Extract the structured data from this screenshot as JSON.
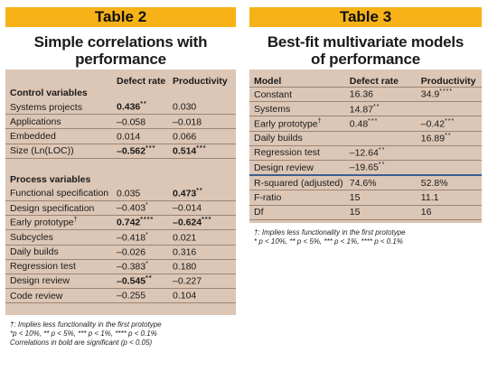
{
  "table2": {
    "tag": "Table 2",
    "title_line1": "Simple correlations with",
    "title_line2": "performance",
    "col1": "Defect rate",
    "col2": "Productivity",
    "section1": "Control variables",
    "section2": "Process variables",
    "control_rows": [
      {
        "label": "Systems projects",
        "v1": "0.436",
        "s1": "**",
        "b1": true,
        "v2": "0.030",
        "s2": "",
        "b2": false
      },
      {
        "label": "Applications",
        "v1": "–0.058",
        "s1": "",
        "b1": false,
        "v2": "–0.018",
        "s2": "",
        "b2": false
      },
      {
        "label": "Embedded",
        "v1": "0.014",
        "s1": "",
        "b1": false,
        "v2": "0.066",
        "s2": "",
        "b2": false
      },
      {
        "label": "Size (Ln(LOC))",
        "v1": "–0.562",
        "s1": "***",
        "b1": true,
        "v2": "0.514",
        "s2": "***",
        "b2": true
      }
    ],
    "process_rows": [
      {
        "label": "Functional specification",
        "v1": "0.035",
        "s1": "",
        "b1": false,
        "v2": "0.473",
        "s2": "**",
        "b2": true
      },
      {
        "label": "Design specification",
        "v1": "–0.403",
        "s1": "*",
        "b1": false,
        "v2": "–0.014",
        "s2": "",
        "b2": false
      },
      {
        "label": "Early prototype",
        "sup": "†",
        "v1": "0.742",
        "s1": "****",
        "b1": true,
        "v2": "–0.624",
        "s2": "***",
        "b2": true
      },
      {
        "label": "Subcycles",
        "v1": "–0.418",
        "s1": "*",
        "b1": false,
        "v2": "0.021",
        "s2": "",
        "b2": false
      },
      {
        "label": "Daily builds",
        "v1": "–0.026",
        "s1": "",
        "b1": false,
        "v2": "0.316",
        "s2": "",
        "b2": false
      },
      {
        "label": "Regression test",
        "v1": "–0.383",
        "s1": "*",
        "b1": false,
        "v2": "0.180",
        "s2": "",
        "b2": false
      },
      {
        "label": "Design review",
        "v1": "–0.545",
        "s1": "**",
        "b1": true,
        "v2": "–0.227",
        "s2": "",
        "b2": false
      },
      {
        "label": "Code review",
        "v1": "–0.255",
        "s1": "",
        "b1": false,
        "v2": "0.104",
        "s2": "",
        "b2": false
      }
    ],
    "footnote1": "†: Implies less functionality in the first prototype",
    "footnote2": "*p < 10%, ** p < 5%, *** p < 1%, **** p < 0.1%",
    "footnote3": "Correlations in bold are significant (p < 0.05)"
  },
  "table3": {
    "tag": "Table 3",
    "title_line1": "Best-fit multivariate models",
    "title_line2": "of performance",
    "col0": "Model",
    "col1": "Defect rate",
    "col2": "Productivity",
    "rows": [
      {
        "label": "Constant",
        "v1": "16.36",
        "s1": "",
        "v2": "34.9",
        "s2": "****"
      },
      {
        "label": "Systems",
        "v1": "14.87",
        "s1": "**",
        "v2": "",
        "s2": ""
      },
      {
        "label": "Early prototype",
        "sup": "†",
        "v1": "0.48",
        "s1": "***",
        "v2": "–0.42",
        "s2": "***"
      },
      {
        "label": "Daily builds",
        "v1": "",
        "s1": "",
        "v2": "16.89",
        "s2": "**"
      },
      {
        "label": "Regression test",
        "v1": "–12.64",
        "s1": "**",
        "v2": "",
        "s2": ""
      },
      {
        "label": "Design review",
        "v1": "–19.65",
        "s1": "**",
        "v2": "",
        "s2": ""
      }
    ],
    "stats_rows": [
      {
        "label": "R-squared (adjusted)",
        "v1": "74.6%",
        "v2": "52.8%"
      },
      {
        "label": "F-ratio",
        "v1": "15",
        "v2": "11.1"
      },
      {
        "label": "Df",
        "v1": "15",
        "v2": "16"
      }
    ],
    "footnote1": "†: Implies less functionality in the first prototype",
    "footnote2": "* p < 10%, ** p < 5%, *** p < 1%, **** p < 0.1%"
  }
}
